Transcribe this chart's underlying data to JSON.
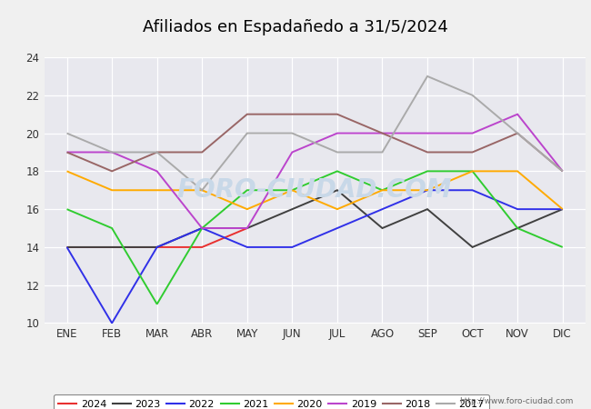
{
  "title": "Afiliados en Espadañedo a 31/5/2024",
  "title_bg": "#5b9bd5",
  "months": [
    "ENE",
    "FEB",
    "MAR",
    "ABR",
    "MAY",
    "JUN",
    "JUL",
    "AGO",
    "SEP",
    "OCT",
    "NOV",
    "DIC"
  ],
  "ylim": [
    10,
    24
  ],
  "yticks": [
    10,
    12,
    14,
    16,
    18,
    20,
    22,
    24
  ],
  "series": {
    "2024": {
      "color": "#e83030",
      "data": [
        14,
        14,
        14,
        14,
        15,
        null,
        null,
        null,
        null,
        null,
        null,
        null
      ]
    },
    "2023": {
      "color": "#404040",
      "data": [
        14,
        14,
        14,
        15,
        15,
        16,
        17,
        15,
        16,
        14,
        15,
        16
      ]
    },
    "2022": {
      "color": "#3030e8",
      "data": [
        14,
        10,
        14,
        15,
        14,
        14,
        15,
        16,
        17,
        17,
        16,
        16
      ]
    },
    "2021": {
      "color": "#30cc30",
      "data": [
        16,
        15,
        11,
        15,
        17,
        17,
        18,
        17,
        18,
        18,
        15,
        14
      ]
    },
    "2020": {
      "color": "#ffaa00",
      "data": [
        18,
        17,
        17,
        17,
        16,
        17,
        16,
        17,
        17,
        18,
        18,
        16
      ]
    },
    "2019": {
      "color": "#bb44cc",
      "data": [
        19,
        19,
        18,
        15,
        15,
        19,
        20,
        20,
        20,
        20,
        21,
        18
      ]
    },
    "2018": {
      "color": "#996666",
      "data": [
        19,
        18,
        19,
        19,
        21,
        21,
        21,
        20,
        19,
        19,
        20,
        18
      ]
    },
    "2017": {
      "color": "#aaaaaa",
      "data": [
        20,
        19,
        19,
        17,
        20,
        20,
        19,
        19,
        23,
        22,
        20,
        18
      ]
    }
  },
  "legend_order": [
    "2024",
    "2023",
    "2022",
    "2021",
    "2020",
    "2019",
    "2018",
    "2017"
  ],
  "watermark": "FORO-CIUDAD.COM",
  "watermark_color": "#c8d8e8",
  "url_text": "http://www.foro-ciudad.com",
  "plot_area_bg": "#e8e8ee",
  "fig_bg": "#f0f0f0"
}
